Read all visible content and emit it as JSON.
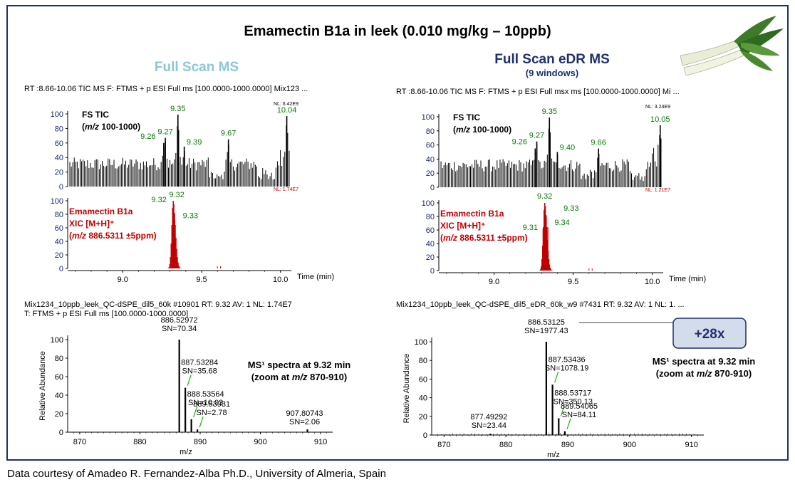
{
  "title": "Emamectin B1a in leek (0.010 mg/kg – 10ppb)",
  "footer": "Data courtesy of Amadeo R. Fernandez-Alba Ph.D., University of Almeria, Spain",
  "colors": {
    "frame": "#1f2f6e",
    "tic": "#000000",
    "xic": "#c00000",
    "peak_label": "#0a7a0a",
    "left_header": "#8fc6d6",
    "right_header": "#1f2f6e",
    "badge_fill": "#d2dcea",
    "badge_stroke": "#1f2f6e"
  },
  "icons": {
    "leek": "leek-photo-icon"
  },
  "panels": [
    {
      "header": "Full Scan MS",
      "subheader": "",
      "chromatogram": {
        "header": "RT :8.66-10.06 TIC  MS  F: FTMS + p ESI Full ms [100.0000-1000.0000] Mix123 ...",
        "tic": {
          "label1": "FS TIC",
          "label2_mz": "m/z",
          "label2_rest": " 100-1000)",
          "nl": "NL: 6.42E9",
          "yticks": [
            "100",
            "80",
            "60",
            "40",
            "20",
            "0"
          ],
          "peaks": [
            {
              "rt": 9.26,
              "label": "9.26",
              "intensity": 60
            },
            {
              "rt": 9.27,
              "label": "9.27",
              "intensity": 67
            },
            {
              "rt": 9.35,
              "label": "9.35",
              "intensity": 99
            },
            {
              "rt": 9.39,
              "label": "9.39",
              "intensity": 55
            },
            {
              "rt": 9.67,
              "label": "9.67",
              "intensity": 65
            },
            {
              "rt": 10.04,
              "label": "10.04",
              "intensity": 97
            }
          ]
        },
        "xic": {
          "label1": "Emamectin B1a",
          "label2": "XIC [M+H]⁺",
          "label3_mz": "m/z",
          "label3_rest": " 886.5311 ±5ppm)",
          "nl": "NL: 1.74E7",
          "yticks": [
            "100",
            "80",
            "60",
            "40",
            "20",
            "0"
          ],
          "peaks": [
            {
              "rt": 9.32,
              "label": "9.32",
              "intensity": 100
            },
            {
              "rt": 9.32,
              "label": "9.32",
              "intensity": 84
            },
            {
              "rt": 9.33,
              "label": "9.33",
              "intensity": 72
            }
          ]
        },
        "rt_range": [
          8.66,
          10.06
        ],
        "xticks": [
          "9.0",
          "9.5",
          "10.0"
        ],
        "xlabel": "Time (min)"
      },
      "spectrum": {
        "header1": "Mix1234_10ppb_leek_QC-dSPE_dil5_60k #10901 RT: 9.32 AV: 1 NL: 1.74E7",
        "header2": "T: FTMS + p ESI Full ms [100.0000-1000.0000]",
        "ylabel": "Relative Abundance",
        "xlabel": "m/z",
        "xrange": [
          868,
          912
        ],
        "xticks": [
          "870",
          "880",
          "890",
          "900",
          "910"
        ],
        "yticks": [
          "100",
          "80",
          "60",
          "40",
          "20",
          "0"
        ],
        "annotation1": "MS¹ spectra at 9.32 min",
        "annotation2_a": "(zoom at ",
        "annotation2_mz": "m/z",
        "annotation2_b": " 870-910)",
        "badge": "",
        "peaks": [
          {
            "mz": 886.52972,
            "intensity": 100,
            "mz_label": "886.52972",
            "sn_label": "SN=70.34"
          },
          {
            "mz": 887.53284,
            "intensity": 48,
            "mz_label": "887.53284",
            "sn_label": "SN=35.68"
          },
          {
            "mz": 888.53564,
            "intensity": 14,
            "mz_label": "888.53564",
            "sn_label": "SN=10.03"
          },
          {
            "mz": 889.53931,
            "intensity": 3,
            "mz_label": "889.53931",
            "sn_label": "SN=2.78"
          },
          {
            "mz": 907.80743,
            "intensity": 3,
            "mz_label": "907.80743",
            "sn_label": "SN=2.06"
          }
        ]
      }
    },
    {
      "header": "Full Scan eDR MS",
      "subheader": "(9 windows)",
      "chromatogram": {
        "header": "RT :8.66-10.06 TIC  MS  F: FTMS + p ESI Full msx ms [100.0000-1000.0000] Mi ...",
        "tic": {
          "label1": "FS TIC",
          "label2_mz": "m/z",
          "label2_rest": " 100-1000)",
          "nl": "NL: 3.24E9",
          "yticks": [
            "100",
            "80",
            "60",
            "40",
            "20",
            "0"
          ],
          "peaks": [
            {
              "rt": 9.26,
              "label": "9.26",
              "intensity": 55
            },
            {
              "rt": 9.27,
              "label": "9.27",
              "intensity": 65
            },
            {
              "rt": 9.35,
              "label": "9.35",
              "intensity": 99
            },
            {
              "rt": 9.4,
              "label": "9.40",
              "intensity": 50
            },
            {
              "rt": 9.66,
              "label": "9.66",
              "intensity": 55
            },
            {
              "rt": 10.05,
              "label": "10.05",
              "intensity": 88
            }
          ]
        },
        "xic": {
          "label1": "Emamectin B1a",
          "label2": "XIC [M+H]⁺",
          "label3_mz": "m/z",
          "label3_rest": " 886.5311 ±5ppm)",
          "nl": "NL: 1.21E7",
          "yticks": [
            "100",
            "80",
            "60",
            "40",
            "20",
            "0"
          ],
          "peaks": [
            {
              "rt": 9.31,
              "label": "9.31",
              "intensity": 62
            },
            {
              "rt": 9.32,
              "label": "9.32",
              "intensity": 100
            },
            {
              "rt": 9.33,
              "label": "9.33",
              "intensity": 80
            },
            {
              "rt": 9.34,
              "label": "9.34",
              "intensity": 64
            }
          ]
        },
        "rt_range": [
          8.66,
          10.06
        ],
        "xticks": [
          "9.0",
          "9.5",
          "10.0"
        ],
        "xlabel": "Time (min)"
      },
      "spectrum": {
        "header1": "Mix1234_10ppb_leek_QC-dSPE_dil5_eDR_60k_w9 #7431 RT: 9.32 AV: 1 NL: 1. ...",
        "header2": "",
        "ylabel": "Relative Abundance",
        "xlabel": "m/z",
        "xrange": [
          868,
          912
        ],
        "xticks": [
          "870",
          "880",
          "890",
          "900",
          "910"
        ],
        "yticks": [
          "100",
          "80",
          "60",
          "40",
          "20",
          "0"
        ],
        "annotation1": "MS¹ spectra at 9.32 min",
        "annotation2_a": "(zoom at ",
        "annotation2_mz": "m/z",
        "annotation2_b": " 870-910)",
        "badge": "+28x",
        "peaks": [
          {
            "mz": 886.53125,
            "intensity": 100,
            "mz_label": "886.53125",
            "sn_label": "SN=1977.43"
          },
          {
            "mz": 887.53436,
            "intensity": 54,
            "mz_label": "887.53436",
            "sn_label": "SN=1078.19"
          },
          {
            "mz": 888.53717,
            "intensity": 18,
            "mz_label": "888.53717",
            "sn_label": "SN=350.13"
          },
          {
            "mz": 889.54065,
            "intensity": 4,
            "mz_label": "889.54065",
            "sn_label": "SN=84.11"
          },
          {
            "mz": 877.49292,
            "intensity": 1.5,
            "mz_label": "877.49292",
            "sn_label": "SN=23.44"
          }
        ]
      }
    }
  ],
  "chart_data": [
    {
      "type": "line",
      "title": "FS TIC (m/z 100-1000) — Full Scan MS",
      "xlabel": "Time (min)",
      "xlim": [
        8.66,
        10.06
      ],
      "ylim": [
        0,
        100
      ],
      "series": [
        {
          "name": "FS TIC",
          "x": [
            9.26,
            9.27,
            9.35,
            9.39,
            9.67,
            10.04
          ],
          "y": [
            60,
            67,
            99,
            55,
            65,
            97
          ]
        }
      ]
    },
    {
      "type": "line",
      "title": "Emamectin B1a XIC [M+H]+ (m/z 886.5311 ±5ppm) — Full Scan MS",
      "xlabel": "Time (min)",
      "xlim": [
        8.66,
        10.06
      ],
      "ylim": [
        0,
        100
      ],
      "series": [
        {
          "name": "Emamectin B1a",
          "x": [
            9.32,
            9.32,
            9.33
          ],
          "y": [
            100,
            84,
            72
          ]
        }
      ]
    },
    {
      "type": "line",
      "title": "FS TIC (m/z 100-1000) — Full Scan eDR MS",
      "xlabel": "Time (min)",
      "xlim": [
        8.66,
        10.06
      ],
      "ylim": [
        0,
        100
      ],
      "series": [
        {
          "name": "FS TIC",
          "x": [
            9.26,
            9.27,
            9.35,
            9.4,
            9.66,
            10.05
          ],
          "y": [
            55,
            65,
            99,
            50,
            55,
            88
          ]
        }
      ]
    },
    {
      "type": "line",
      "title": "Emamectin B1a XIC [M+H]+ (m/z 886.5311 ±5ppm) — Full Scan eDR MS",
      "xlabel": "Time (min)",
      "xlim": [
        8.66,
        10.06
      ],
      "ylim": [
        0,
        100
      ],
      "series": [
        {
          "name": "Emamectin B1a",
          "x": [
            9.31,
            9.32,
            9.33,
            9.34
          ],
          "y": [
            62,
            100,
            80,
            64
          ]
        }
      ]
    },
    {
      "type": "bar",
      "title": "MS1 spectra at 9.32 min — Full Scan MS",
      "xlabel": "m/z",
      "ylabel": "Relative Abundance",
      "xlim": [
        868,
        912
      ],
      "ylim": [
        0,
        100
      ],
      "x": [
        886.52972,
        887.53284,
        888.53564,
        889.53931,
        907.80743
      ],
      "values": [
        100,
        48,
        14,
        3,
        3
      ],
      "sn": [
        "SN=70.34",
        "SN=35.68",
        "SN=10.03",
        "SN=2.78",
        "SN=2.06"
      ]
    },
    {
      "type": "bar",
      "title": "MS1 spectra at 9.32 min — Full Scan eDR MS",
      "xlabel": "m/z",
      "ylabel": "Relative Abundance",
      "xlim": [
        868,
        912
      ],
      "ylim": [
        0,
        100
      ],
      "x": [
        877.49292,
        886.53125,
        887.53436,
        888.53717,
        889.54065
      ],
      "values": [
        1.5,
        100,
        54,
        18,
        4
      ],
      "sn": [
        "SN=23.44",
        "SN=1977.43",
        "SN=1078.19",
        "SN=350.13",
        "SN=84.11"
      ]
    }
  ]
}
